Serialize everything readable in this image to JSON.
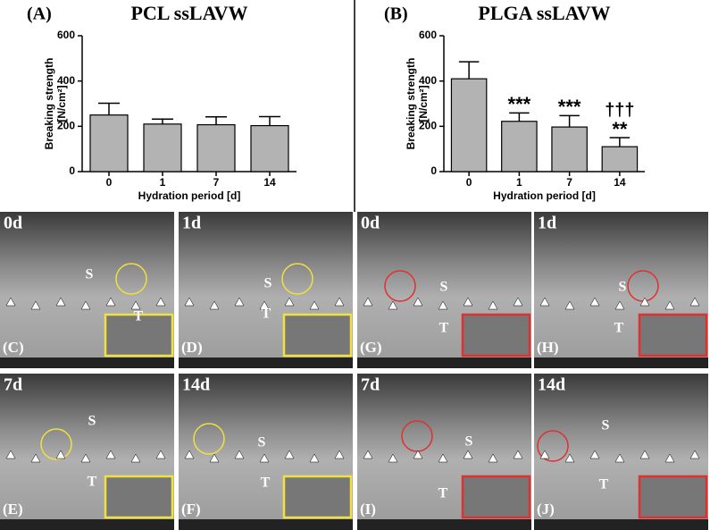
{
  "chart_data": [
    {
      "type": "bar",
      "panel": "(A)",
      "title": "PCL ssLAVW",
      "ylabel": "Breaking strength",
      "ylabel_unit": "[N/cm²]",
      "xlabel": "Hydration period [d]",
      "categories": [
        "0",
        "1",
        "7",
        "14"
      ],
      "values": [
        250,
        210,
        207,
        203
      ],
      "errors": [
        52,
        22,
        35,
        40
      ],
      "color": "#b3b3b3",
      "ylim": [
        0,
        600
      ],
      "yticks": [
        0,
        200,
        400,
        600
      ]
    },
    {
      "type": "bar",
      "panel": "(B)",
      "title": "PLGA ssLAVW",
      "ylabel": "Breaking strength",
      "ylabel_unit": "[N/cm²]",
      "xlabel": "Hydration period [d]",
      "categories": [
        "0",
        "1",
        "7",
        "14"
      ],
      "values": [
        410,
        222,
        197,
        110
      ],
      "errors": [
        75,
        37,
        50,
        40
      ],
      "annotations": [
        null,
        "***",
        "***",
        "**"
      ],
      "annotations_top": [
        null,
        null,
        null,
        "†††"
      ],
      "color": "#b3b3b3",
      "ylim": [
        0,
        600
      ],
      "yticks": [
        0,
        200,
        400,
        600
      ]
    }
  ],
  "panels": [
    {
      "time": "0d",
      "label": "(C)",
      "regions": [
        "S",
        "T"
      ]
    },
    {
      "time": "1d",
      "label": "(D)",
      "regions": [
        "S",
        "T"
      ]
    },
    {
      "time": "0d",
      "label": "(G)",
      "regions": [
        "S",
        "T"
      ]
    },
    {
      "time": "1d",
      "label": "(H)",
      "regions": [
        "S",
        "T"
      ]
    },
    {
      "time": "7d",
      "label": "(E)",
      "regions": [
        "S",
        "T"
      ]
    },
    {
      "time": "14d",
      "label": "(F)",
      "regions": [
        "S",
        "T"
      ]
    },
    {
      "time": "7d",
      "label": "(I)",
      "regions": [
        "S",
        "T"
      ]
    },
    {
      "time": "14d",
      "label": "(J)",
      "regions": [
        "S",
        "T"
      ]
    }
  ]
}
